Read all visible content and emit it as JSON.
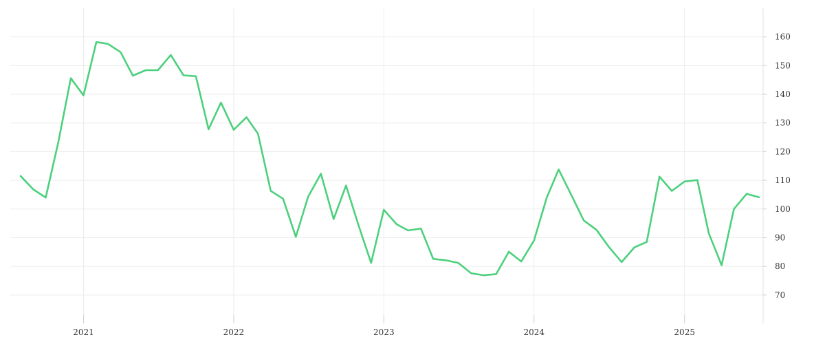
{
  "chart_data": {
    "type": "line",
    "title": "",
    "xlabel": "",
    "ylabel": "",
    "grid": true,
    "y_axis_position": "right",
    "xlim": [
      "2020-08-01",
      "2025-07-01"
    ],
    "ylim": [
      63,
      170
    ],
    "x_ticks": [
      {
        "date": "2021-01-01",
        "label": "2021"
      },
      {
        "date": "2022-01-01",
        "label": "2022"
      },
      {
        "date": "2023-01-01",
        "label": "2023"
      },
      {
        "date": "2024-01-01",
        "label": "2024"
      },
      {
        "date": "2025-01-01",
        "label": "2025"
      }
    ],
    "y_ticks": [
      70,
      80,
      90,
      100,
      110,
      120,
      130,
      140,
      150,
      160
    ],
    "series": [
      {
        "color": "#4cd07d",
        "x": [
          "2020-08-01",
          "2020-09-01",
          "2020-10-01",
          "2020-11-01",
          "2020-12-01",
          "2021-01-01",
          "2021-02-01",
          "2021-03-01",
          "2021-04-01",
          "2021-05-01",
          "2021-06-01",
          "2021-07-01",
          "2021-08-01",
          "2021-09-01",
          "2021-10-01",
          "2021-11-01",
          "2021-12-01",
          "2022-01-01",
          "2022-02-01",
          "2022-03-01",
          "2022-04-01",
          "2022-05-01",
          "2022-06-01",
          "2022-07-01",
          "2022-08-01",
          "2022-09-01",
          "2022-10-01",
          "2022-11-01",
          "2022-12-01",
          "2023-01-01",
          "2023-02-01",
          "2023-03-01",
          "2023-04-01",
          "2023-05-01",
          "2023-06-01",
          "2023-07-01",
          "2023-08-01",
          "2023-09-01",
          "2023-10-01",
          "2023-11-01",
          "2023-12-01",
          "2024-01-01",
          "2024-02-01",
          "2024-03-01",
          "2024-04-01",
          "2024-05-01",
          "2024-06-01",
          "2024-07-01",
          "2024-08-01",
          "2024-09-01",
          "2024-10-01",
          "2024-11-01",
          "2024-12-01",
          "2025-01-01",
          "2025-02-01",
          "2025-03-01",
          "2025-04-01",
          "2025-05-01",
          "2025-06-01",
          "2025-07-01"
        ],
        "values": [
          111.5,
          106.8,
          104,
          123.5,
          145.6,
          139.6,
          158.2,
          157.6,
          154.7,
          146.5,
          148.4,
          148.4,
          153.7,
          146.6,
          146.3,
          127.8,
          137.1,
          127.6,
          132,
          126.3,
          106.3,
          103.6,
          90.3,
          104.3,
          112.3,
          96.5,
          108.2,
          94.1,
          81.2,
          99.7,
          94.7,
          92.5,
          93.2,
          82.6,
          82.1,
          81.2,
          77.6,
          76.9,
          77.3,
          85.1,
          81.7,
          89,
          104,
          113.8,
          104.8,
          96,
          92.7,
          86.8,
          81.5,
          86.6,
          88.5,
          111.3,
          106.3,
          109.6,
          110.1,
          91.5,
          80.4,
          100,
          105.3,
          104.1
        ]
      }
    ]
  }
}
